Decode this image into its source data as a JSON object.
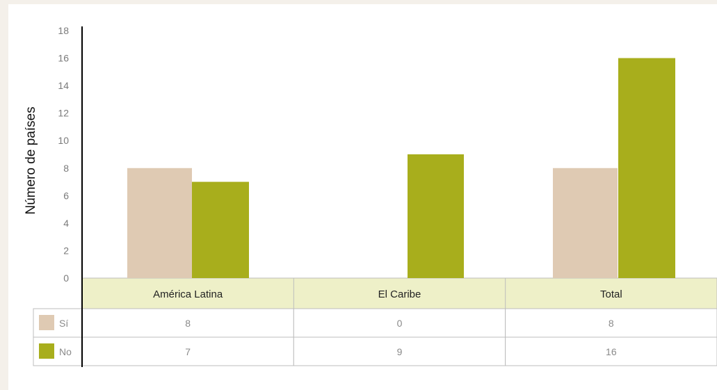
{
  "chart_data": {
    "type": "bar",
    "title": "",
    "xlabel": "",
    "ylabel": "Número de países",
    "ylim": [
      0,
      18
    ],
    "yticks": [
      0,
      2,
      4,
      6,
      8,
      10,
      12,
      14,
      16,
      18
    ],
    "categories": [
      "América Latina",
      "El Caribe",
      "Total"
    ],
    "series": [
      {
        "name": "Sí",
        "values": [
          8,
          0,
          8
        ],
        "color": "#dfcab3"
      },
      {
        "name": "No",
        "values": [
          7,
          9,
          16
        ],
        "color": "#a8ae1c"
      }
    ],
    "grid": false,
    "legend": "data-table"
  },
  "colors": {
    "header_fill": "#eef0c8",
    "table_border": "#bdbdbd",
    "axis": "#000000"
  }
}
